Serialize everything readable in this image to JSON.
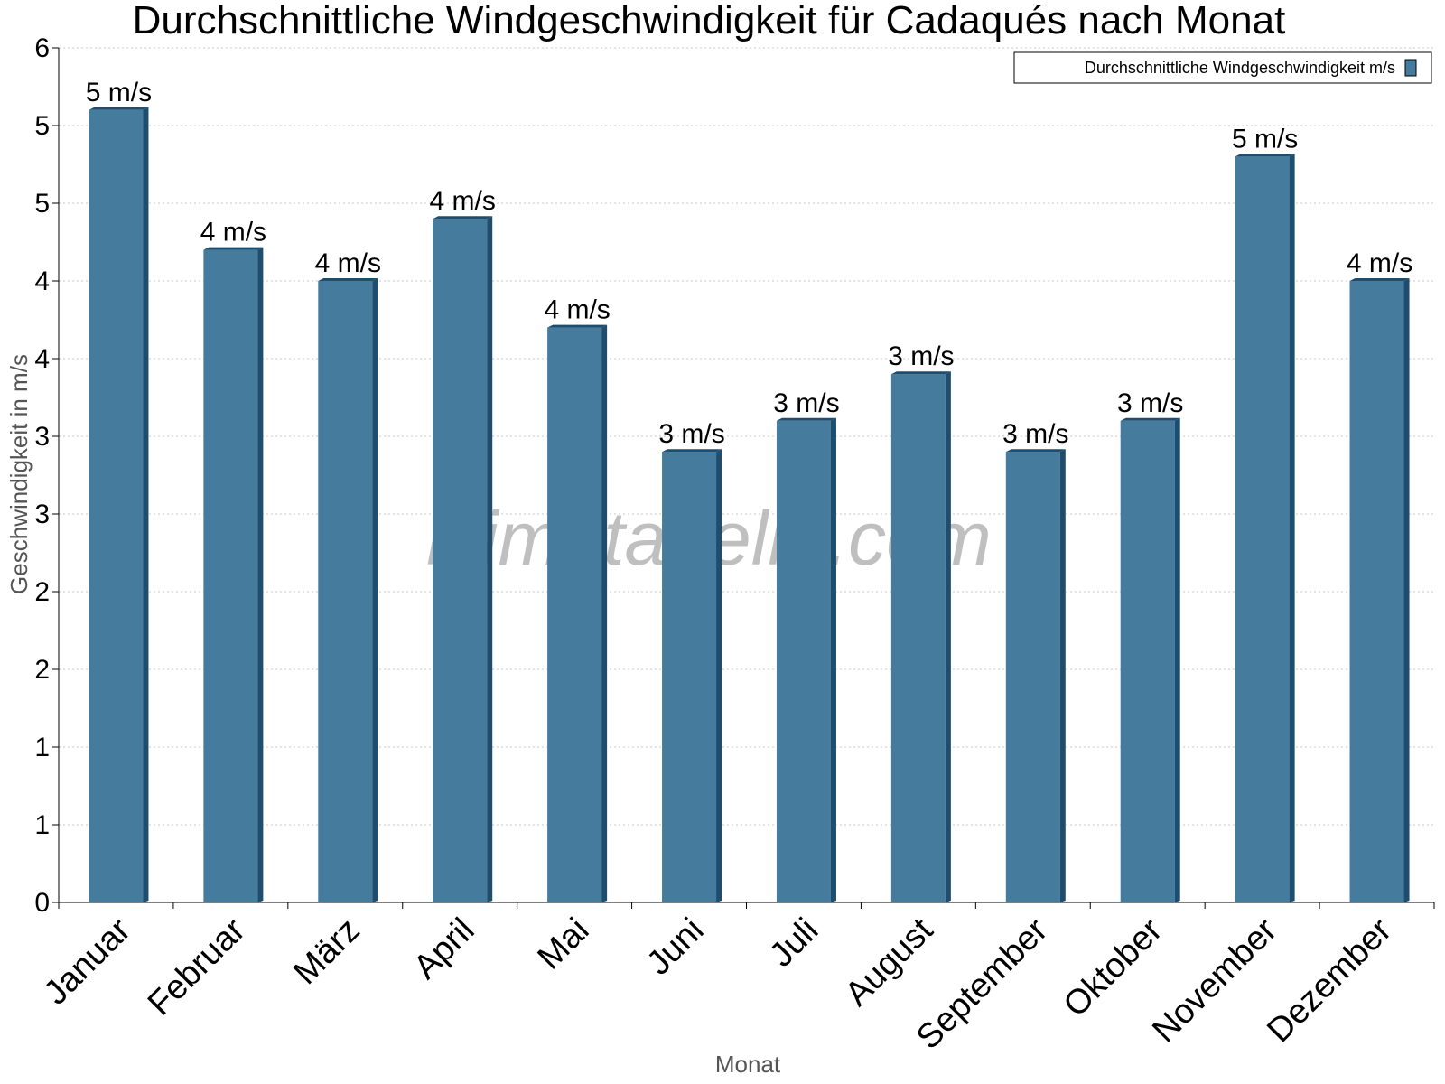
{
  "chart_data": {
    "type": "bar",
    "title": "Durchschnittliche Windgeschwindigkeit für Cadaqués nach Monat",
    "xlabel": "Monat",
    "ylabel": "Geschwindigkeit in m/s",
    "categories": [
      "Januar",
      "Februar",
      "März",
      "April",
      "Mai",
      "Juni",
      "Juli",
      "August",
      "September",
      "Oktober",
      "November",
      "Dezember"
    ],
    "series": [
      {
        "name": "Durchschnittliche Windgeschwindigkeit m/s",
        "values": [
          5.1,
          4.2,
          4.0,
          4.4,
          3.7,
          2.9,
          3.1,
          3.4,
          2.9,
          3.1,
          4.8,
          4.0
        ],
        "labels": [
          "5 m/s",
          "4 m/s",
          "4 m/s",
          "4 m/s",
          "4 m/s",
          "3 m/s",
          "3 m/s",
          "3 m/s",
          "3 m/s",
          "3 m/s",
          "5 m/s",
          "4 m/s"
        ],
        "color": "#457b9d"
      }
    ],
    "ylim": [
      0,
      5.5
    ],
    "yticks": [
      0,
      0.5,
      1,
      1.5,
      2,
      2.5,
      3,
      3.5,
      4,
      4.5,
      5,
      5.5
    ],
    "ytick_labels": [
      "0",
      "1",
      "1",
      "2",
      "2",
      "3",
      "3",
      "4",
      "4",
      "5",
      "5",
      "6"
    ],
    "grid": true,
    "legend_position": "top-right",
    "bar_side_color": "#1e4d6e",
    "watermark": "klimatabelle.com"
  }
}
